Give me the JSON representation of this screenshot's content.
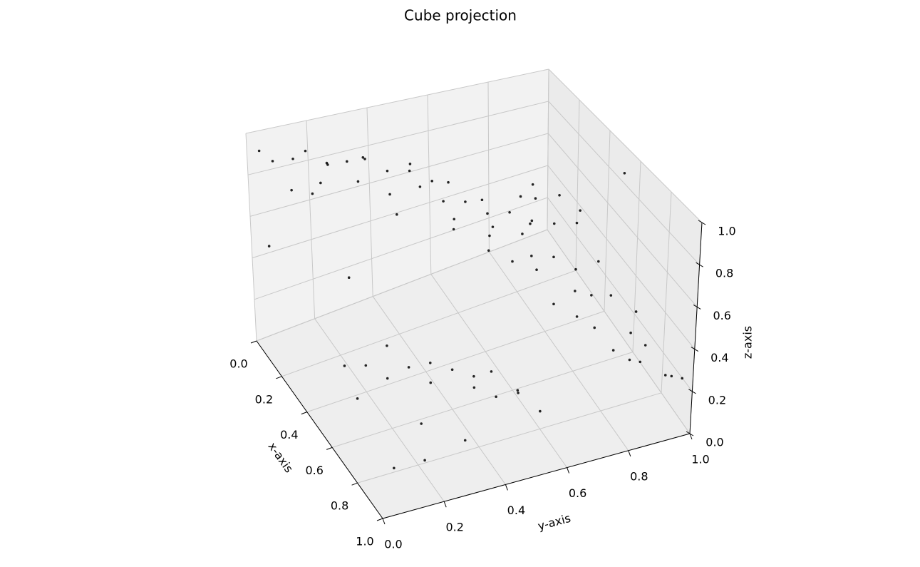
{
  "chart_data": {
    "type": "scatter3d",
    "title": "Cube projection",
    "xlabel": "x-axis",
    "ylabel": "y-axis",
    "zlabel": "z-axis",
    "xlim": [
      0,
      1
    ],
    "ylim": [
      0,
      1
    ],
    "zlim": [
      0,
      1
    ],
    "xticks": [
      {
        "value": 0,
        "label": "0.0"
      },
      0.2,
      0.4,
      0.6,
      0.8,
      {
        "value": 1,
        "label": "1.0"
      }
    ],
    "yticks": [
      {
        "value": 0,
        "label": "0.0"
      },
      0.2,
      0.4,
      0.6,
      0.8,
      {
        "value": 1,
        "label": "1.0"
      }
    ],
    "zticks": [
      {
        "value": 0,
        "label": "0.0"
      },
      0.2,
      0.4,
      0.6,
      0.8,
      {
        "value": 1,
        "label": "1.0"
      }
    ],
    "grid": true,
    "series": [
      {
        "color": "#000000",
        "x": [
          0.08,
          0.12,
          0.15,
          0.2,
          0.25,
          0.1,
          0.18,
          0.3,
          0.35,
          0.4,
          0.22,
          0.28,
          0.05,
          0.14,
          0.33,
          0.38,
          0.26,
          0.42,
          0.19,
          0.31,
          0.1,
          0.15,
          0.2,
          0.25,
          0.3,
          0.35,
          0.4,
          0.12,
          0.18,
          0.22,
          0.28,
          0.33,
          0.38,
          0.14,
          0.24,
          0.3,
          0.36,
          0.2,
          0.26,
          0.32,
          0.3,
          0.35,
          0.4,
          0.45,
          0.5,
          0.55,
          0.6,
          0.65,
          0.7,
          0.75,
          0.8,
          0.85,
          0.9,
          0.95,
          0.42,
          0.52,
          0.62,
          0.72,
          0.82,
          0.92,
          0.35,
          0.4,
          0.45,
          0.5,
          0.55,
          0.6,
          0.65,
          0.7,
          0.75,
          0.8,
          0.85,
          0.9,
          0.38,
          0.48,
          0.58,
          0.68,
          0.78,
          0.88,
          0.52,
          0.62,
          0.02,
          0.05,
          0.2,
          0.6,
          0.7
        ],
        "y": [
          0.05,
          0.1,
          0.2,
          0.3,
          0.35,
          0.15,
          0.25,
          0.4,
          0.45,
          0.48,
          0.05,
          0.12,
          0.02,
          0.32,
          0.22,
          0.3,
          0.42,
          0.38,
          0.18,
          0.08,
          0.6,
          0.65,
          0.7,
          0.75,
          0.8,
          0.85,
          0.9,
          0.72,
          0.82,
          0.58,
          0.68,
          0.78,
          0.62,
          0.88,
          0.92,
          0.66,
          0.74,
          0.86,
          0.56,
          0.95,
          0.8,
          0.85,
          0.9,
          0.95,
          0.78,
          0.88,
          0.92,
          0.98,
          0.82,
          0.86,
          0.94,
          0.9,
          0.96,
          0.99,
          0.76,
          0.84,
          0.8,
          0.93,
          0.88,
          0.97,
          0.15,
          0.2,
          0.25,
          0.3,
          0.35,
          0.4,
          0.45,
          0.5,
          0.55,
          0.6,
          0.1,
          0.18,
          0.28,
          0.38,
          0.48,
          0.58,
          0.22,
          0.32,
          0.12,
          0.52,
          0.05,
          0.3,
          0.4,
          0.95,
          0.55
        ],
        "z": [
          0.9,
          0.92,
          0.88,
          0.91,
          0.87,
          0.93,
          0.9,
          0.89,
          0.86,
          0.88,
          0.85,
          0.9,
          0.94,
          0.87,
          0.91,
          0.86,
          0.89,
          0.9,
          0.92,
          0.88,
          0.5,
          0.52,
          0.48,
          0.51,
          0.49,
          0.5,
          0.53,
          0.47,
          0.5,
          0.52,
          0.49,
          0.51,
          0.48,
          0.5,
          0.52,
          0.47,
          0.5,
          0.49,
          0.51,
          0.5,
          0.3,
          0.32,
          0.28,
          0.35,
          0.25,
          0.3,
          0.33,
          0.27,
          0.3,
          0.22,
          0.26,
          0.24,
          0.2,
          0.22,
          0.36,
          0.31,
          0.29,
          0.25,
          0.23,
          0.21,
          0.1,
          0.12,
          0.08,
          0.15,
          0.1,
          0.18,
          0.12,
          0.1,
          0.14,
          0.08,
          0.06,
          0.1,
          0.16,
          0.12,
          0.1,
          0.08,
          0.15,
          0.12,
          0.1,
          0.14,
          0.45,
          0.2,
          0.6,
          0.95,
          0.7
        ]
      }
    ]
  }
}
